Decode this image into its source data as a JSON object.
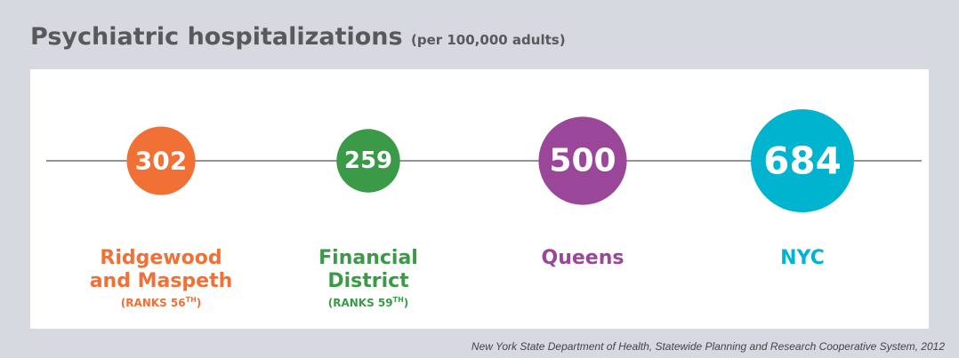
{
  "chart_data": {
    "type": "bubble",
    "title": "Psychiatric hospitalizations",
    "subtitle": "(per 100,000 adults)",
    "categories": [
      "Ridgewood and Maspeth",
      "Financial District",
      "Queens",
      "NYC"
    ],
    "values": [
      302,
      259,
      500,
      684
    ],
    "colors": [
      "#f07036",
      "#3a9a47",
      "#9b4799",
      "#00b4cf"
    ],
    "ranks": [
      {
        "text": "(RANKS 56",
        "sup": "TH",
        "close": ")"
      },
      {
        "text": "(RANKS 59",
        "sup": "TH",
        "close": ")"
      },
      null,
      null
    ],
    "source": "New York State Department of Health, Statewide Planning and Research Cooperative System, 2012"
  }
}
